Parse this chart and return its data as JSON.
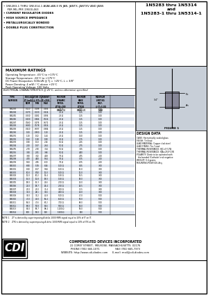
{
  "title_left": "1N5283 thru 1N5314\nand\n1N5283-1 thru 1N5314-1",
  "bullets": [
    "1N5283-1 THRU 1N5314-1 AVAILABLE IN JAN, JANTX, JANTXV AND JANS\n  PER MIL-PRF-19500-463",
    "CURRENT REGULATOR DIODES",
    "HIGH SOURCE IMPEDANCE",
    "METALLURGICALLY BONDED",
    "DOUBLE PLUG CONSTRUCTION"
  ],
  "max_ratings_title": "MAXIMUM RATINGS",
  "max_ratings": [
    "Operating Temperature: -65°C to +175°C",
    "Storage Temperature: -65°C to +175°C",
    "DC Power Dissipation: 500mW @ Tj = +25°C, L = 3/8\"",
    "Power Derating: 4 mW / °C above +25°C",
    "Peak Operating Voltage: 100 Volts"
  ],
  "elec_char_title": "ELECTRICAL CHARACTERISTICS @ 25°C, unless otherwise specified",
  "table_data": [
    [
      "1N5283",
      "0.220",
      "0.188",
      "0.264",
      "25 Ω",
      "0.75",
      "1.00"
    ],
    [
      "1N5284",
      "0.270",
      "0.230",
      "0.324",
      "25 Ω",
      "1.25",
      "1.00"
    ],
    [
      "1N5285",
      "0.330",
      "0.281",
      "0.396",
      "25 Ω",
      "1.25",
      "1.00"
    ],
    [
      "1N5286",
      "0.430",
      "0.366",
      "0.516",
      "25 Ω",
      "1.25",
      "1.00"
    ],
    [
      "1N5287",
      "0.560",
      "0.476",
      "0.672",
      "25 Ω",
      "1.25",
      "1.00"
    ],
    [
      "1N5288",
      "0.680",
      "0.578",
      "0.816",
      "25 Ω",
      "1.25",
      "1.00"
    ],
    [
      "1N5289",
      "0.820",
      "0.697",
      "0.984",
      "25 Ω",
      "1.25",
      "1.00"
    ],
    [
      "1N5290",
      "1.00",
      "0.850",
      "1.20",
      "25 Ω",
      "1.25",
      "1.00"
    ],
    [
      "1N5291",
      "1.20",
      "1.02",
      "1.44",
      "25 Ω",
      "1.50",
      "1.00"
    ],
    [
      "1N5292",
      "1.50",
      "1.28",
      "1.80",
      "25 Ω",
      "1.75",
      "1.00"
    ],
    [
      "1N5293",
      "1.80",
      "1.53",
      "2.16",
      "50 Ω",
      "2.25",
      "1.00"
    ],
    [
      "1N5294",
      "2.20",
      "1.87",
      "2.64",
      "50 Ω",
      "2.75",
      "1.00"
    ],
    [
      "1N5295",
      "2.70",
      "2.30",
      "3.24",
      "50 Ω",
      "3.25",
      "1.00"
    ],
    [
      "1N5296",
      "3.30",
      "2.81",
      "3.96",
      "50 Ω",
      "4.00",
      "1.00"
    ],
    [
      "1N5297",
      "3.90",
      "3.32",
      "4.68",
      "75 Ω",
      "4.75",
      "2.00"
    ],
    [
      "1N5298",
      "4.70",
      "4.00",
      "5.64",
      "75 Ω",
      "5.75",
      "2.00"
    ],
    [
      "1N5299",
      "5.60",
      "4.76",
      "6.72",
      "75 Ω",
      "6.75",
      "2.00"
    ],
    [
      "1N5300",
      "6.80",
      "5.78",
      "8.16",
      "100 Ω",
      "8.25",
      "3.00"
    ],
    [
      "1N5301",
      "8.20",
      "6.97",
      "9.84",
      "100 Ω",
      "10.0",
      "3.00"
    ],
    [
      "1N5302",
      "10.0",
      "8.50",
      "12.0",
      "100 Ω",
      "12.0",
      "3.00"
    ],
    [
      "1N5303",
      "12.0",
      "10.2",
      "14.4",
      "150 Ω",
      "14.5",
      "3.00"
    ],
    [
      "1N5304",
      "15.0",
      "12.8",
      "18.0",
      "150 Ω",
      "18.0",
      "3.00"
    ],
    [
      "1N5305",
      "18.0",
      "15.3",
      "21.6",
      "200 Ω",
      "22.0",
      "3.00"
    ],
    [
      "1N5306",
      "22.0",
      "18.7",
      "26.4",
      "250 Ω",
      "26.5",
      "3.00"
    ],
    [
      "1N5307",
      "27.0",
      "23.0",
      "32.4",
      "300 Ω",
      "32.5",
      "3.00"
    ],
    [
      "1N5308",
      "33.0",
      "28.1",
      "39.6",
      "400 Ω",
      "40.0",
      "3.00"
    ],
    [
      "1N5309",
      "39.0",
      "33.2",
      "46.8",
      "500 Ω",
      "47.0",
      "5.00"
    ],
    [
      "1N5310",
      "47.0",
      "40.0",
      "56.4",
      "600 Ω",
      "57.0",
      "5.00"
    ],
    [
      "1N5311",
      "56.0",
      "47.6",
      "67.2",
      "700 Ω",
      "68.0",
      "5.00"
    ],
    [
      "1N5312",
      "68.0",
      "57.8",
      "81.6",
      "900 Ω",
      "82.0",
      "5.00"
    ],
    [
      "1N5313",
      "82.0",
      "69.7",
      "98.4",
      "1100 Ω",
      "99.0",
      "5.00"
    ],
    [
      "1N5314",
      "100",
      "85.0",
      "120",
      "1500 Ω",
      "120",
      "5.00"
    ]
  ],
  "note1": "NOTE 1    ZT is derived by superimposing A delta 1000 RMS signal equal to 10% of IT on IT.",
  "note2": "NOTE 2    ZTK is derived by superimposing A delta 1000 RMS signal equal to 10% of ITK on ITK.",
  "design_data_title": "DESIGN DATA",
  "design_data": [
    "CASE: Hermetically sealed glass",
    "FINISH: Tin/lead",
    "LEAD MATERIAL: Copper clad steel",
    "LEAD FINISH: Tin / Lead",
    "THERMAL RESISTANCE: θJC=5°C/W",
    "THERMAL RESISTANCE: θJA=250°C/W",
    "POLARITY: Diode to be operated with",
    "  the banded (Cathode) end negative",
    "WEIGHT: 0.4 grams",
    "MOUNTING POSITION: Any"
  ],
  "figure_title": "FIGURE 1",
  "company_name": "COMPENSATED DEVICES INCORPORATED",
  "company_address": "22 COREY STREET,  MELROSE, MASSACHUSETTS  02176",
  "company_phone": "PHONE (781) 665-1071                    FAX (781) 665-7373",
  "company_web": "WEBSITE: http://www.cdi-diodes.com      E-mail: mail@cdi-diodes.com",
  "bg_color": "#ffffff",
  "table_header_bg": "#b0b8c8",
  "table_row_bg2": "#dde3ed",
  "border_color": "#000000",
  "figure_bg": "#c8cfd8"
}
